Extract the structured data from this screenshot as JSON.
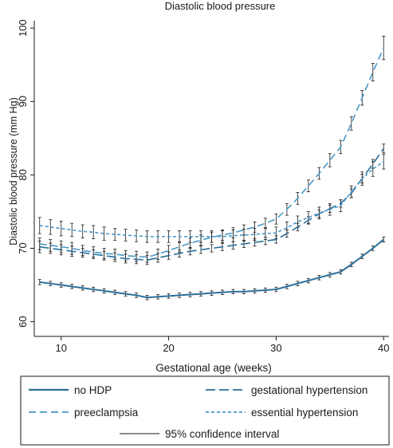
{
  "chart_data": {
    "type": "line",
    "title": "Diastolic blood pressure",
    "xlabel": "Gestational age (weeks)",
    "ylabel": "Diastolic blood pressure (mm Hg)",
    "xlim": [
      7.5,
      40.5
    ],
    "ylim": [
      58,
      101
    ],
    "xticks": [
      10,
      20,
      30,
      40
    ],
    "yticks": [
      60,
      70,
      80,
      90,
      100
    ],
    "x": [
      8,
      9,
      10,
      11,
      12,
      13,
      14,
      15,
      16,
      17,
      18,
      19,
      20,
      21,
      22,
      23,
      24,
      25,
      26,
      27,
      28,
      29,
      30,
      31,
      32,
      33,
      34,
      35,
      36,
      37,
      38,
      39,
      40
    ],
    "grid": false,
    "legend_position": "bottom",
    "series": [
      {
        "name": "no HDP",
        "color": "#2a6f9b",
        "dash": "solid",
        "values": [
          65.4,
          65.2,
          65.0,
          64.8,
          64.6,
          64.4,
          64.2,
          64.0,
          63.8,
          63.6,
          63.3,
          63.4,
          63.5,
          63.6,
          63.7,
          63.8,
          63.9,
          64.0,
          64.1,
          64.1,
          64.2,
          64.3,
          64.4,
          64.8,
          65.2,
          65.6,
          66.0,
          66.4,
          66.8,
          67.8,
          68.9,
          70.0,
          71.2
        ],
        "ci": [
          0.35,
          0.3,
          0.3,
          0.3,
          0.3,
          0.3,
          0.3,
          0.3,
          0.3,
          0.3,
          0.3,
          0.3,
          0.3,
          0.3,
          0.3,
          0.3,
          0.3,
          0.3,
          0.3,
          0.3,
          0.3,
          0.3,
          0.3,
          0.3,
          0.3,
          0.3,
          0.3,
          0.3,
          0.3,
          0.3,
          0.3,
          0.3,
          0.35
        ]
      },
      {
        "name": "gestational hypertension",
        "color": "#2a6f9b",
        "dash": "long",
        "values": [
          70.2,
          70.0,
          69.8,
          69.6,
          69.4,
          69.2,
          69.0,
          68.8,
          68.6,
          68.5,
          68.4,
          68.7,
          69.0,
          69.3,
          69.6,
          69.8,
          70.0,
          70.2,
          70.4,
          70.6,
          70.8,
          71.0,
          71.2,
          72.0,
          72.9,
          73.8,
          74.7,
          75.4,
          76.1,
          77.5,
          79.5,
          81.5,
          83.6
        ],
        "ci": [
          0.8,
          0.7,
          0.7,
          0.7,
          0.6,
          0.6,
          0.6,
          0.6,
          0.6,
          0.6,
          0.6,
          0.6,
          0.5,
          0.5,
          0.5,
          0.5,
          0.5,
          0.5,
          0.5,
          0.5,
          0.5,
          0.5,
          0.5,
          0.5,
          0.5,
          0.5,
          0.5,
          0.5,
          0.5,
          0.6,
          0.6,
          0.6,
          0.6
        ]
      },
      {
        "name": "preeclampsia",
        "color": "#4a98c8",
        "dash": "medium",
        "values": [
          70.6,
          70.4,
          70.2,
          70.0,
          69.7,
          69.5,
          69.3,
          69.2,
          69.0,
          68.9,
          68.8,
          69.2,
          69.7,
          70.2,
          70.7,
          71.1,
          71.5,
          71.8,
          72.1,
          72.5,
          72.9,
          73.4,
          74.0,
          75.3,
          76.8,
          78.5,
          80.2,
          82.0,
          83.8,
          87.0,
          90.5,
          94.0,
          97.3
        ],
        "ci": [
          0.8,
          0.8,
          0.8,
          0.8,
          0.7,
          0.7,
          0.7,
          0.7,
          0.7,
          0.7,
          0.7,
          0.7,
          0.7,
          0.7,
          0.7,
          0.7,
          0.7,
          0.7,
          0.7,
          0.7,
          0.7,
          0.7,
          0.7,
          0.8,
          0.8,
          0.8,
          0.8,
          0.9,
          0.9,
          0.9,
          1.0,
          1.2,
          1.6
        ]
      },
      {
        "name": "essential hypertension",
        "color": "#4a98c8",
        "dash": "short",
        "values": [
          73.1,
          72.9,
          72.7,
          72.5,
          72.3,
          72.2,
          72.0,
          71.9,
          71.8,
          71.7,
          71.6,
          71.6,
          71.6,
          71.6,
          71.6,
          71.6,
          71.6,
          71.6,
          71.7,
          71.8,
          71.9,
          72.0,
          72.1,
          72.8,
          73.6,
          74.2,
          74.8,
          75.3,
          75.8,
          77.7,
          79.5,
          80.8,
          81.8
        ],
        "ci": [
          1.1,
          1.0,
          1.0,
          0.9,
          0.9,
          0.9,
          0.9,
          0.8,
          0.8,
          0.8,
          0.8,
          0.8,
          0.8,
          0.8,
          0.8,
          0.8,
          0.8,
          0.8,
          0.8,
          0.8,
          0.8,
          0.8,
          0.8,
          0.8,
          0.8,
          0.8,
          0.8,
          0.8,
          0.8,
          0.8,
          0.9,
          1.0,
          1.0
        ]
      }
    ],
    "legend": [
      {
        "label": "no HDP",
        "series": 0
      },
      {
        "label": "gestational hypertension",
        "series": 1
      },
      {
        "label": "preeclampsia",
        "series": 2
      },
      {
        "label": "essential hypertension",
        "series": 3
      },
      {
        "label": "95% confidence interval",
        "series": -1
      }
    ],
    "ci_color": "#1a1a1a"
  }
}
